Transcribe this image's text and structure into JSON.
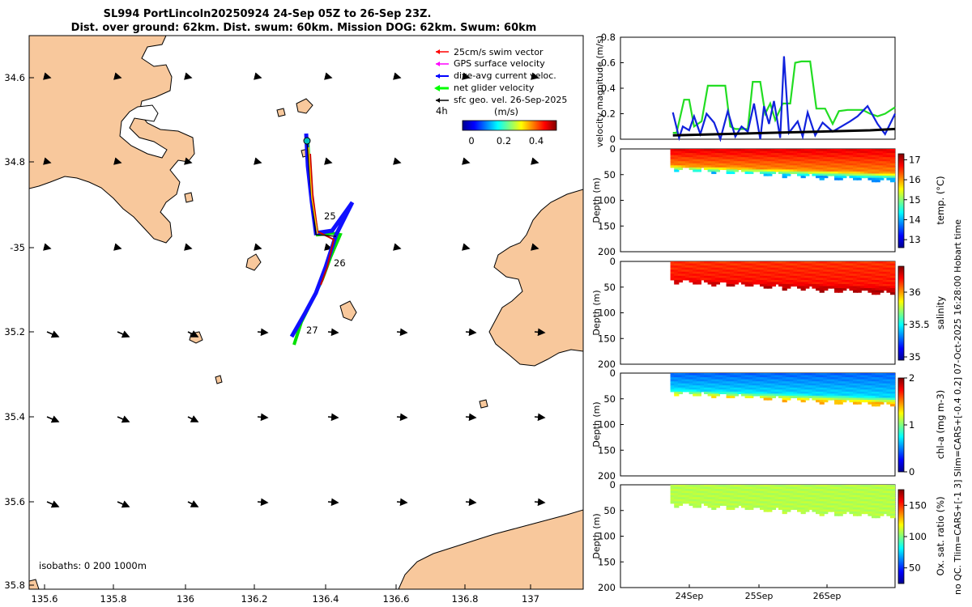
{
  "title": {
    "line1": "SL994 PortLincoln20250924 24-Sep 05Z to 26-Sep 23Z.",
    "line2": "Dist. over ground: 62km. Dist. swum: 60km. Mission DOG: 62km. Swum: 60km"
  },
  "side_note": "no QC. Tlim=CARS+[-1 3] Slim=CARS+[-0.4 0.2] 07-Oct-2025 16:28:00 Hobart time",
  "map": {
    "lon_ticks": [
      "135.6",
      "135.8",
      "136",
      "136.2",
      "136.4",
      "136.6",
      "136.8",
      "137"
    ],
    "lat_ticks": [
      "34.6",
      "34.8",
      "-35",
      "35.2",
      "35.4",
      "35.6",
      "35.8"
    ],
    "legend": {
      "items": [
        {
          "label": "25cm/s swim vector",
          "color": "#ff0000"
        },
        {
          "label": "GPS surface velocity",
          "color": "#ff00ff"
        },
        {
          "label": "dive-avg current veloc.",
          "color": "#0000ff"
        },
        {
          "label": "net glider velocity",
          "color": "#00ff00"
        },
        {
          "label": "sfc geo. vel. 26-Sep-2025",
          "color": "#000000"
        }
      ],
      "duration": "4h",
      "colorbar_label": "(m/s)",
      "colorbar_ticks": [
        "0",
        "0.2",
        "0.4"
      ]
    },
    "day_labels": [
      "25",
      "26",
      "27"
    ],
    "isobaths": "isobaths: 0   200  1000m",
    "colors": {
      "land": "#f8c89c",
      "water": "#ffffff"
    }
  },
  "chart_data": [
    {
      "type": "line",
      "ylabel": "velocity magnitude (m/s)",
      "ylim": [
        0,
        0.8
      ],
      "yticks": [
        "0",
        "0.2",
        "0.4",
        "0.6",
        "0.8"
      ],
      "x": [
        1.2,
        1.3,
        1.4,
        1.5,
        1.6,
        1.7,
        1.8,
        1.9,
        2.0,
        2.1,
        2.2,
        2.3,
        2.4,
        2.5,
        2.6,
        2.7,
        2.8,
        2.9,
        3.0
      ],
      "series": [
        {
          "name": "net glider velocity",
          "color": "#22dd22",
          "x": [
            1.22,
            1.25,
            1.31,
            1.35,
            1.39,
            1.45,
            1.5,
            1.56,
            1.64,
            1.68,
            1.72,
            1.82,
            1.86,
            1.92,
            1.96,
            2.0,
            2.04,
            2.1,
            2.16,
            2.2,
            2.25,
            2.32,
            2.37,
            2.44,
            2.5,
            2.55,
            2.62,
            2.68,
            2.74,
            2.8,
            2.86,
            2.92,
            3.0
          ],
          "y": [
            0.05,
            0.05,
            0.31,
            0.31,
            0.1,
            0.14,
            0.42,
            0.42,
            0.42,
            0.1,
            0.08,
            0.08,
            0.45,
            0.45,
            0.2,
            0.28,
            0.15,
            0.28,
            0.28,
            0.6,
            0.61,
            0.61,
            0.24,
            0.24,
            0.12,
            0.22,
            0.23,
            0.23,
            0.23,
            0.2,
            0.18,
            0.2,
            0.25
          ]
        },
        {
          "name": "dive-avg current veloc.",
          "color": "#1122dd",
          "x": [
            1.22,
            1.27,
            1.3,
            1.35,
            1.39,
            1.44,
            1.49,
            1.55,
            1.6,
            1.66,
            1.72,
            1.77,
            1.82,
            1.87,
            1.92,
            1.95,
            1.99,
            2.03,
            2.08,
            2.11,
            2.15,
            2.22,
            2.26,
            2.3,
            2.36,
            2.42,
            2.5,
            2.57,
            2.64,
            2.7,
            2.78,
            2.86,
            2.92,
            3.0
          ],
          "y": [
            0.21,
            0.01,
            0.1,
            0.07,
            0.18,
            0.04,
            0.2,
            0.13,
            0.0,
            0.22,
            0.02,
            0.1,
            0.06,
            0.28,
            0.0,
            0.26,
            0.12,
            0.3,
            0.01,
            0.65,
            0.05,
            0.14,
            0.02,
            0.21,
            0.03,
            0.13,
            0.06,
            0.1,
            0.14,
            0.18,
            0.26,
            0.12,
            0.04,
            0.2
          ]
        },
        {
          "name": "sfc geo. vel.",
          "color": "#000000",
          "x": [
            1.22,
            1.6,
            2.0,
            2.4,
            2.8,
            3.0
          ],
          "y": [
            0.03,
            0.04,
            0.05,
            0.06,
            0.07,
            0.08
          ]
        }
      ]
    },
    {
      "type": "heatmap",
      "ylabel": "Depth (m)",
      "colorbar_label": "temp. (°C)",
      "ylim": [
        200,
        0
      ],
      "clim": [
        12.6,
        17.3
      ],
      "cticks": [
        "13",
        "14",
        "15",
        "16",
        "17"
      ],
      "top_value": 16.8,
      "bottom_value": 13.9,
      "mld": [
        30,
        45
      ]
    },
    {
      "type": "heatmap",
      "ylabel": "Depth (m)",
      "colorbar_label": "salinity",
      "ylim": [
        200,
        0
      ],
      "clim": [
        34.95,
        36.4
      ],
      "cticks": [
        "35",
        "35.5",
        "36"
      ],
      "top_value": 36.15,
      "bottom_value": 36.33,
      "mld": [
        30,
        45
      ]
    },
    {
      "type": "heatmap",
      "ylabel": "Depth (m)",
      "colorbar_label": "chl-a (mg m-3)",
      "ylim": [
        200,
        0
      ],
      "clim": [
        0,
        2
      ],
      "cticks": [
        "0",
        "1",
        "2"
      ],
      "top_value": 0.45,
      "bottom_value": 1.4,
      "mld": [
        30,
        45
      ]
    },
    {
      "type": "heatmap",
      "ylabel": "Depth (m)",
      "colorbar_label": "Ox. sat. ratio (%)",
      "ylim": [
        200,
        0
      ],
      "clim": [
        25,
        175
      ],
      "cticks": [
        "50",
        "100",
        "150"
      ],
      "top_value": 108,
      "bottom_value": 108,
      "mld": [
        30,
        45
      ]
    }
  ],
  "shared": {
    "depth_ticks": [
      "0",
      "50",
      "100",
      "150",
      "200"
    ],
    "time_ticks": [
      "24Sep",
      "25Sep",
      "26Sep"
    ]
  }
}
